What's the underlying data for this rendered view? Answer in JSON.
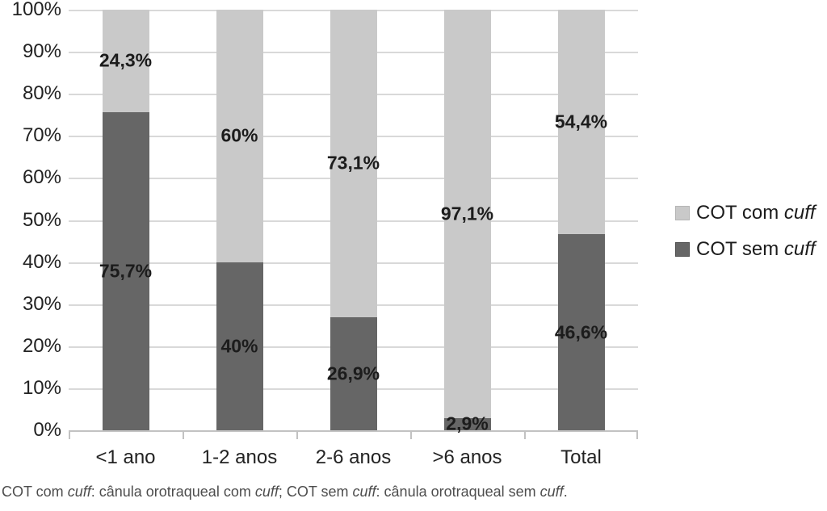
{
  "chart_data": {
    "type": "bar",
    "stacked": true,
    "categories": [
      "<1 ano",
      "1-2 anos",
      "2-6 anos",
      ">6 anos",
      "Total"
    ],
    "series": [
      {
        "name": "COT sem cuff",
        "stack_position": "bottom",
        "color": "#666666",
        "values": [
          75.7,
          40,
          26.9,
          2.9,
          46.6
        ],
        "labels": [
          "75,7%",
          "40%",
          "26,9%",
          "2,9%",
          "46,6%"
        ]
      },
      {
        "name": "COT com cuff",
        "stack_position": "top",
        "color": "#c9c9c9",
        "values": [
          24.3,
          60,
          73.1,
          97.1,
          54.4
        ],
        "labels": [
          "24,3%",
          "60%",
          "73,1%",
          "97,1%",
          "54,4%"
        ]
      }
    ],
    "y_ticks": [
      "100%",
      "90%",
      "80%",
      "70%",
      "60%",
      "50%",
      "40%",
      "30%",
      "20%",
      "10%",
      "0%"
    ],
    "ylim": [
      0,
      100
    ],
    "grid": true,
    "legend_position": "right"
  },
  "legend": {
    "items": [
      {
        "prefix": "COT com ",
        "italic_word": "cuff",
        "color": "#c9c9c9",
        "border": "#b5b5b5"
      },
      {
        "prefix": "COT sem ",
        "italic_word": "cuff",
        "color": "#666666",
        "border": "#4f4f4f"
      }
    ]
  },
  "caption": {
    "parts": [
      {
        "text": "COT com ",
        "italic": false
      },
      {
        "text": "cuff",
        "italic": true
      },
      {
        "text": ": cânula orotraqueal com ",
        "italic": false
      },
      {
        "text": "cuff",
        "italic": true
      },
      {
        "text": "; COT sem ",
        "italic": false
      },
      {
        "text": "cuff",
        "italic": true
      },
      {
        "text": ": cânula orotraqueal sem ",
        "italic": false
      },
      {
        "text": "cuff",
        "italic": true
      },
      {
        "text": ".",
        "italic": false
      }
    ]
  },
  "colors": {
    "bar_light": "#c9c9c9",
    "bar_dark": "#666666",
    "gridline": "#d9d9d9",
    "axis": "#c2c2c2",
    "label_text": "#1c1c1c",
    "caption_text": "#4d4d4d",
    "background": "#ffffff"
  }
}
